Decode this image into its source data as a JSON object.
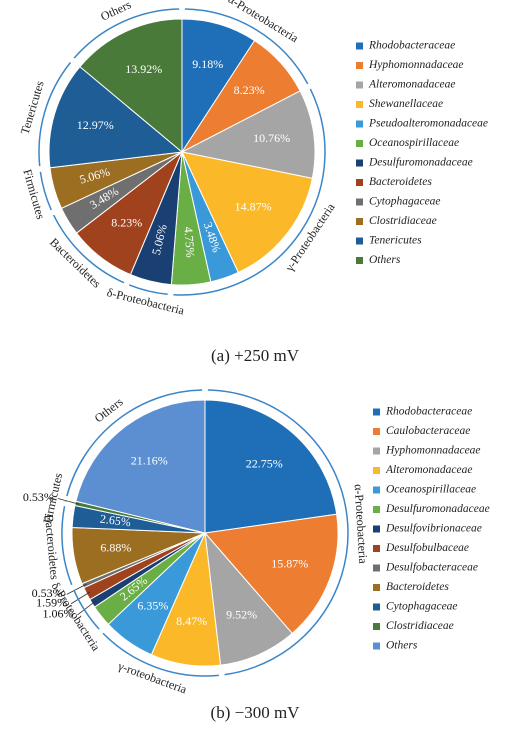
{
  "chart_data": [
    {
      "type": "pie",
      "caption": "(a) +250 mV",
      "categories": [
        "Rhodobacteraceae",
        "Hyphomonnadaceae",
        "Alteromonadaceae",
        "Shewanellaceae",
        "Pseudoalteromonadaceae",
        "Oceanospirillaceae",
        "Desulfuromonadaceae",
        "Bacteroidetes",
        "Cytophagaceae",
        "Clostridiaceae",
        "Tenericutes",
        "Others"
      ],
      "values": [
        9.18,
        8.23,
        10.76,
        14.87,
        3.48,
        4.75,
        5.06,
        8.23,
        3.48,
        5.06,
        12.97,
        13.92
      ],
      "value_labels": [
        "9.18%",
        "8.23%",
        "10.76%",
        "14.87%",
        "3.48%",
        "4.75%",
        "5.06%",
        "8.23%",
        "3.48%",
        "5.06%",
        "12.97%",
        "13.92%"
      ],
      "colors": [
        "#1f6fb8",
        "#ed7d31",
        "#a5a5a5",
        "#fbb829",
        "#3a9ad9",
        "#6aaf45",
        "#1a3f73",
        "#a0421e",
        "#6f6f6f",
        "#9c6e22",
        "#1e5d96",
        "#4a7a3a"
      ],
      "group_labels": [
        "α-Proteobacteria",
        "γ-Proteobacteria",
        "δ-Proteobacteria",
        "Bacteroidetes",
        "Firmicutes",
        "Tenericutes",
        "Others"
      ]
    },
    {
      "type": "pie",
      "caption": "(b) −300 mV",
      "categories": [
        "Rhodobacteraceae",
        "Caulobacteraceae",
        "Hyphomonnadaceae",
        "Alteromonadaceae",
        "Oceanospirillaceae",
        "Desulfuromonadaceae",
        "Desulfovibrionaceae",
        "Desulfobulbaceae",
        "Desulfobacteraceae",
        "Bacteroidetes",
        "Cytophagaceae",
        "Clostridiaceae",
        "Others"
      ],
      "values": [
        22.75,
        15.87,
        9.52,
        8.47,
        6.35,
        2.65,
        1.06,
        1.59,
        0.53,
        6.88,
        2.65,
        0.53,
        21.16
      ],
      "value_labels": [
        "22.75%",
        "15.87%",
        "9.52%",
        "8.47%",
        "6.35%",
        "2.65%",
        "1.06%",
        "1.59%",
        "0.53%",
        "6.88%",
        "2.65%",
        "0.53%",
        "21.16%"
      ],
      "colors": [
        "#1f6fb8",
        "#ed7d31",
        "#a5a5a5",
        "#fbb829",
        "#3a9ad9",
        "#6aaf45",
        "#1a3f73",
        "#a0421e",
        "#6f6f6f",
        "#9c6e22",
        "#1e5d96",
        "#4a7a3a",
        "#5b8fd1"
      ],
      "group_labels": [
        "α-Proteobacteria",
        "γ-roteobacteria",
        "δ-Proteobacteria",
        "Bacteroidetes",
        "Firmicutes",
        "Others"
      ]
    }
  ]
}
